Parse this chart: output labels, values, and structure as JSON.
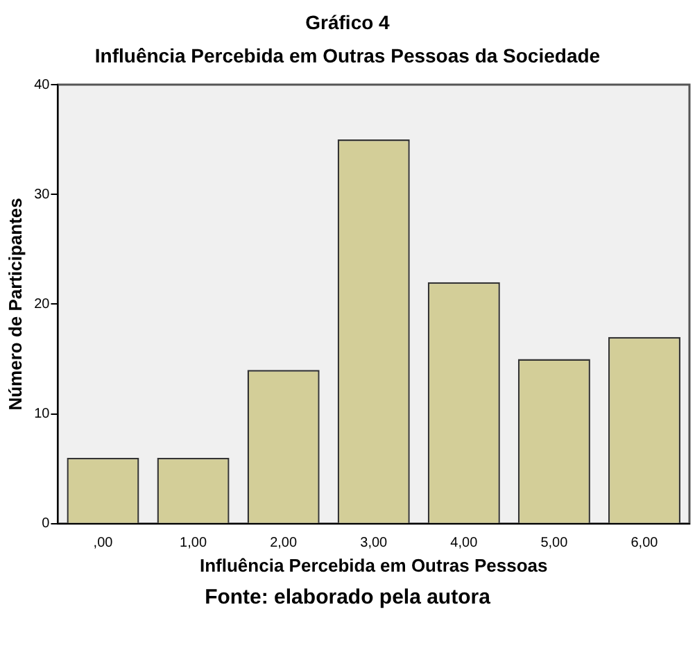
{
  "chart_data": {
    "type": "bar",
    "title": "Gráfico 4",
    "subtitle": "Influência Percebida em Outras Pessoas da Sociedade",
    "xlabel": "Influência Percebida em Outras Pessoas",
    "ylabel": "Número de Participantes",
    "annotations": [
      "Fonte: elaborado pela autora"
    ],
    "categories": [
      ",00",
      "1,00",
      "2,00",
      "3,00",
      "4,00",
      "5,00",
      "6,00"
    ],
    "values": [
      6,
      6,
      14,
      35,
      22,
      15,
      17
    ],
    "color": "#d3ce98",
    "ylim": [
      0,
      40
    ],
    "yticks": [
      0,
      10,
      20,
      30,
      40
    ],
    "grid": false,
    "legend": false
  }
}
